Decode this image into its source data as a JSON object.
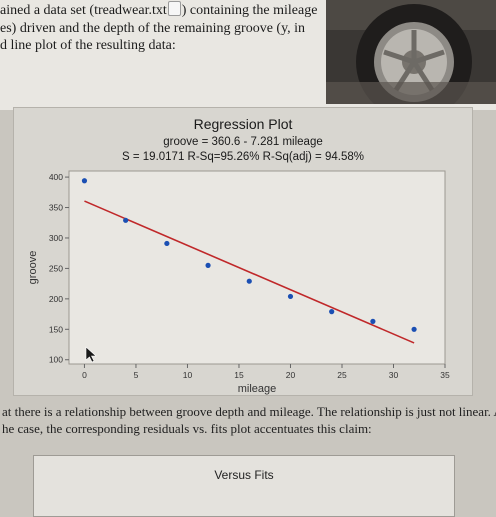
{
  "document": {
    "intro_lines": [
      "ained a data set (treadwear.txt",
      ") containing the mileage",
      "es) driven and the depth of the remaining groove (y, in",
      "d line plot of the resulting data:"
    ],
    "paragraph_lines": [
      "at there is a relationship between groove depth and mileage. The relationship is just not linear. As is",
      "he case, the corresponding residuals vs. fits plot accentuates this claim:"
    ],
    "versus_title": "Versus Fits"
  },
  "chart_data": {
    "type": "scatter",
    "title": "Regression Plot",
    "subtitle_equation": "groove = 360.6 - 7.281 mileage",
    "subtitle_stats": "S = 19.0171  R-Sq=95.26%  R-Sq(adj) = 94.58%",
    "xlabel": "mileage",
    "ylabel": "groove",
    "xlim": [
      -1.5,
      35
    ],
    "ylim": [
      93,
      410
    ],
    "xticks": [
      0,
      5,
      10,
      15,
      20,
      25,
      30,
      35
    ],
    "yticks": [
      100,
      150,
      200,
      250,
      300,
      350,
      400
    ],
    "points": [
      {
        "x": 0,
        "y": 394
      },
      {
        "x": 4,
        "y": 329
      },
      {
        "x": 8,
        "y": 291
      },
      {
        "x": 12,
        "y": 255
      },
      {
        "x": 16,
        "y": 229
      },
      {
        "x": 20,
        "y": 204
      },
      {
        "x": 24,
        "y": 179
      },
      {
        "x": 28,
        "y": 163
      },
      {
        "x": 32,
        "y": 150
      }
    ],
    "fit": {
      "intercept": 360.6,
      "slope": -7.281,
      "x_range": [
        0,
        32
      ]
    },
    "colors": {
      "points": "#1b4fb3",
      "fit_line": "#c0282a",
      "plot_bg": "#e9e7e2"
    }
  }
}
